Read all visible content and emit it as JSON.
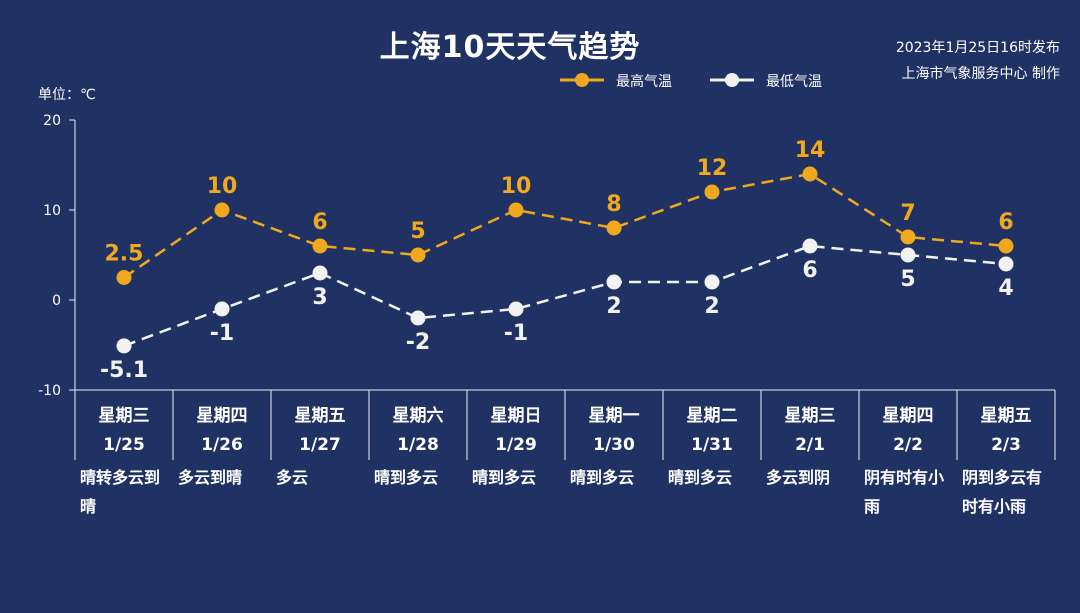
{
  "title": "上海10天天气趋势",
  "issued": [
    "2023年1月25日16时发布",
    "上海市气象服务中心 制作"
  ],
  "unit_label": "单位：℃",
  "colors": {
    "background": "#1f3263",
    "high": "#f0a81e",
    "low": "#f2f2f2",
    "axis": "#e9edf6"
  },
  "chart_data": {
    "type": "line",
    "ylim": [
      -10,
      20
    ],
    "yticks": [
      "-10",
      "0",
      "10",
      "20"
    ],
    "legend_position": "top-center",
    "x": [
      "1/25",
      "1/26",
      "1/27",
      "1/28",
      "1/29",
      "1/30",
      "1/31",
      "2/1",
      "2/2",
      "2/3"
    ],
    "weekdays": [
      "星期三",
      "星期四",
      "星期五",
      "星期六",
      "星期日",
      "星期一",
      "星期二",
      "星期三",
      "星期四",
      "星期五"
    ],
    "conditions": [
      "晴转多云到晴",
      "多云到晴",
      "多云",
      "晴到多云",
      "晴到多云",
      "晴到多云",
      "晴到多云",
      "多云到阴",
      "阴有时有小雨",
      "阴到多云有时有小雨"
    ],
    "series": [
      {
        "name": "最高气温",
        "values": [
          2.5,
          10,
          6,
          5,
          10,
          8,
          12,
          14,
          7,
          6
        ],
        "labels": [
          "2.5",
          "10",
          "6",
          "5",
          "10",
          "8",
          "12",
          "14",
          "7",
          "6"
        ]
      },
      {
        "name": "最低气温",
        "values": [
          -5.1,
          -1,
          3,
          -2,
          -1,
          2,
          2,
          6,
          5,
          4
        ],
        "labels": [
          "-5.1",
          "-1",
          "3",
          "-2",
          "-1",
          "2",
          "2",
          "6",
          "5",
          "4"
        ]
      }
    ]
  }
}
